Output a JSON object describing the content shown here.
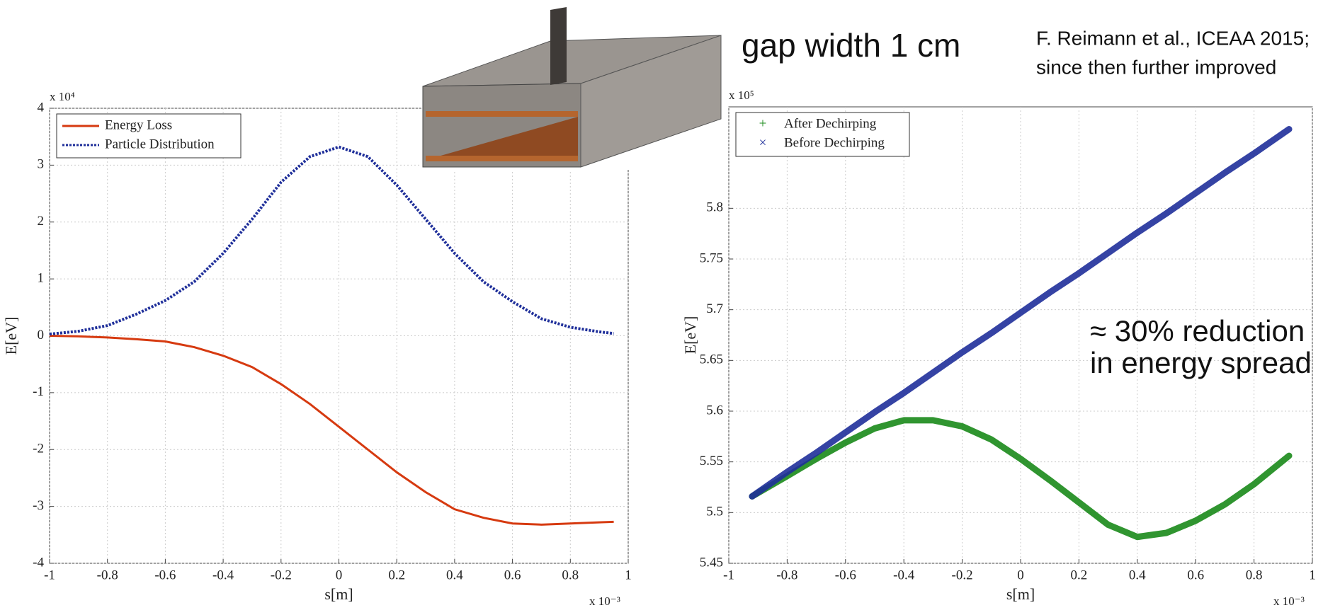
{
  "slide": {
    "gap_label": "gap width 1 cm",
    "citation": [
      "F. Reimann et al., ICEAA 2015;",
      "since then further improved"
    ],
    "annotation": [
      "≈ 30% reduction",
      "in energy spread"
    ]
  },
  "chart_data": [
    {
      "type": "line",
      "x_label": "s[m]",
      "y_label": "E[eV]",
      "x_multiplier": "x 10⁻³",
      "y_multiplier": "x 10⁴",
      "xlim": [
        -1,
        1
      ],
      "xticks": [
        -1,
        -0.8,
        -0.6,
        -0.4,
        -0.2,
        0,
        0.2,
        0.4,
        0.6,
        0.8,
        1
      ],
      "ylim": [
        -4,
        4
      ],
      "yticks": [
        -4,
        -3,
        -2,
        -1,
        0,
        1,
        2,
        3,
        4
      ],
      "grid": true,
      "legend": "upper left",
      "x": [
        -1,
        -0.9,
        -0.8,
        -0.7,
        -0.6,
        -0.5,
        -0.4,
        -0.3,
        -0.2,
        -0.1,
        0,
        0.1,
        0.2,
        0.3,
        0.4,
        0.5,
        0.6,
        0.7,
        0.8,
        0.9,
        0.95
      ],
      "series": [
        {
          "name": "Energy Loss",
          "color": "#d63a10",
          "line_style": "solid",
          "values": [
            0,
            -0.01,
            -0.03,
            -0.06,
            -0.1,
            -0.2,
            -0.35,
            -0.55,
            -0.85,
            -1.2,
            -1.6,
            -2.0,
            -2.4,
            -2.75,
            -3.05,
            -3.2,
            -3.3,
            -3.32,
            -3.3,
            -3.28,
            -3.27
          ]
        },
        {
          "name": "Particle Distribution",
          "color": "#1f2f9a",
          "line_style": "dotted",
          "values": [
            0.03,
            0.08,
            0.18,
            0.38,
            0.62,
            0.95,
            1.45,
            2.05,
            2.7,
            3.15,
            3.32,
            3.15,
            2.65,
            2.05,
            1.45,
            0.95,
            0.6,
            0.3,
            0.15,
            0.07,
            0.04
          ]
        }
      ]
    },
    {
      "type": "scatter",
      "x_label": "s[m]",
      "y_label": "E[eV]",
      "x_multiplier": "x 10⁻³",
      "y_multiplier": "x 10⁵",
      "xlim": [
        -1,
        1
      ],
      "xticks": [
        -1,
        -0.8,
        -0.6,
        -0.4,
        -0.2,
        0,
        0.2,
        0.4,
        0.6,
        0.8,
        1
      ],
      "ylim": [
        5.45,
        5.9
      ],
      "yticks": [
        5.45,
        5.5,
        5.55,
        5.6,
        5.65,
        5.7,
        5.75,
        5.8
      ],
      "grid": true,
      "legend": "upper left",
      "x": [
        -0.92,
        -0.8,
        -0.7,
        -0.6,
        -0.5,
        -0.4,
        -0.3,
        -0.2,
        -0.1,
        0,
        0.1,
        0.2,
        0.3,
        0.4,
        0.5,
        0.6,
        0.7,
        0.8,
        0.92
      ],
      "series": [
        {
          "name": "After Dechirping",
          "color": "#1a8a1a",
          "marker": "+",
          "values": [
            5.516,
            5.536,
            5.553,
            5.569,
            5.583,
            5.591,
            5.591,
            5.585,
            5.572,
            5.553,
            5.532,
            5.51,
            5.488,
            5.476,
            5.48,
            5.492,
            5.508,
            5.528,
            5.556
          ]
        },
        {
          "name": "Before Dechirping",
          "color": "#1f2f9a",
          "marker": "×",
          "values": [
            5.516,
            5.54,
            5.559,
            5.579,
            5.599,
            5.618,
            5.638,
            5.658,
            5.677,
            5.697,
            5.717,
            5.736,
            5.756,
            5.776,
            5.795,
            5.815,
            5.835,
            5.854,
            5.878
          ]
        }
      ]
    }
  ]
}
